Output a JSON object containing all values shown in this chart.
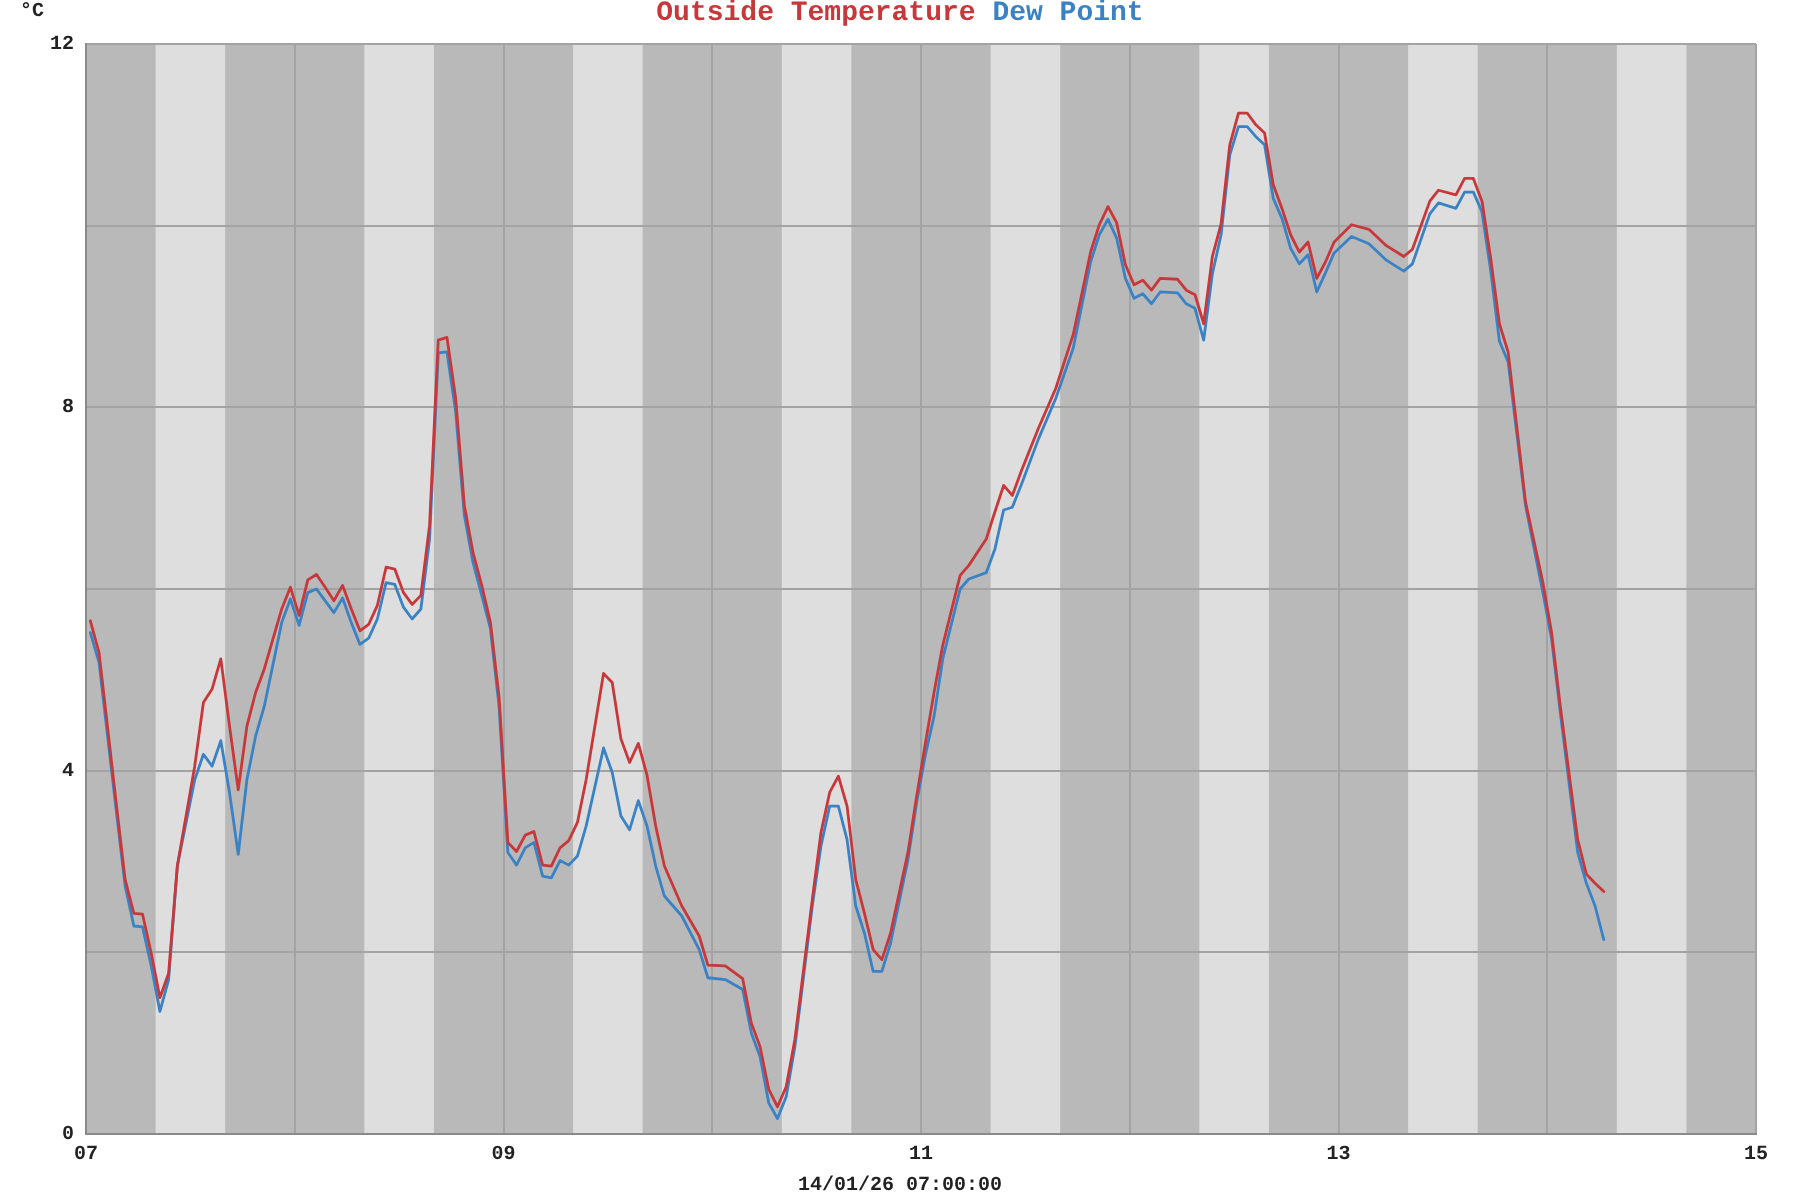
{
  "chart_data": {
    "type": "line",
    "ylabel": "°C",
    "xlabel": "14/01/26 07:00:00",
    "x": [
      "--01-07T00:30",
      "--01-07T01:30",
      "--01-07T03:30",
      "--01-07T04:30",
      "--01-07T05:30",
      "--01-07T06:30",
      "--01-07T07:30",
      "--01-07T08:30",
      "--01-07T09:30",
      "--01-07T10:30",
      "--01-07T12:30",
      "--01-07T13:30",
      "--01-07T14:30",
      "--01-07T15:30",
      "--01-07T16:30",
      "--01-07T17:30",
      "--01-07T18:30",
      "--01-07T19:30",
      "--01-07T20:30",
      "--01-07T22:30",
      "--01-07T23:30",
      "--01-08T00:30",
      "--01-08T01:30",
      "--01-08T02:30",
      "--01-08T03:30",
      "--01-08T04:30",
      "--01-08T05:30",
      "--01-08T06:30",
      "--01-08T07:30",
      "--01-08T08:30",
      "--01-08T09:30",
      "--01-08T10:30",
      "--01-08T11:30",
      "--01-08T12:30",
      "--01-08T13:30",
      "--01-08T14:30",
      "--01-08T15:30",
      "--01-08T16:30",
      "--01-08T17:30",
      "--01-08T18:30",
      "--01-08T19:30",
      "--01-08T20:30",
      "--01-08T21:30",
      "--01-08T22:30",
      "--01-08T23:30",
      "--01-09T00:30",
      "--01-09T01:30",
      "--01-09T02:30",
      "--01-09T03:30",
      "--01-09T04:30",
      "--01-09T05:30",
      "--01-09T06:30",
      "--01-09T07:30",
      "--01-09T08:30",
      "--01-09T09:30",
      "--01-09T11:30",
      "--01-09T12:30",
      "--01-09T13:30",
      "--01-09T14:30",
      "--01-09T15:30",
      "--01-09T16:30",
      "--01-09T17:30",
      "--01-09T18:30",
      "--01-09T20:30",
      "--01-09T22:30",
      "--01-09T23:30",
      "--01-10T01:30",
      "--01-10T03:30",
      "--01-10T04:30",
      "--01-10T05:30",
      "--01-10T06:30",
      "--01-10T07:30",
      "--01-10T08:30",
      "--01-10T09:30",
      "--01-10T11:30",
      "--01-10T12:30",
      "--01-10T13:30",
      "--01-10T14:30",
      "--01-10T15:30",
      "--01-10T16:30",
      "--01-10T17:30",
      "--01-10T18:30",
      "--01-10T19:30",
      "--01-10T20:30",
      "--01-10T22:30",
      "--01-10T23:30",
      "--01-11T00:30",
      "--01-11T01:30",
      "--01-11T02:30",
      "--01-11T04:30",
      "--01-11T05:30",
      "--01-11T07:30",
      "--01-11T08:30",
      "--01-11T09:30",
      "--01-11T10:30",
      "--01-11T11:30",
      "--01-11T13:30",
      "--01-11T15:30",
      "--01-11T17:30",
      "--01-11T19:30",
      "--01-11T20:30",
      "--01-11T21:30",
      "--01-11T22:30",
      "--01-11T23:30",
      "--01-12T00:30",
      "--01-12T01:30",
      "--01-12T02:30",
      "--01-12T03:30",
      "--01-12T05:30",
      "--01-12T06:30",
      "--01-12T07:30",
      "--01-12T08:30",
      "--01-12T09:30",
      "--01-12T10:30",
      "--01-12T11:30",
      "--01-12T12:30",
      "--01-12T13:30",
      "--01-12T14:30",
      "--01-12T15:30",
      "--01-12T16:30",
      "--01-12T17:30",
      "--01-12T18:30",
      "--01-12T19:30",
      "--01-12T20:30",
      "--01-12T21:30",
      "--01-12T22:30",
      "--01-12T23:30",
      "--01-13T01:30",
      "--01-13T03:30",
      "--01-13T05:30",
      "--01-13T07:30",
      "--01-13T08:30",
      "--01-13T10:30",
      "--01-13T11:30",
      "--01-13T13:30",
      "--01-13T14:30",
      "--01-13T15:30",
      "--01-13T16:30",
      "--01-13T17:30",
      "--01-13T18:30",
      "--01-13T19:30",
      "--01-13T21:30",
      "--01-13T23:30",
      "--01-14T00:30",
      "--01-14T01:30",
      "--01-14T03:30",
      "--01-14T04:30",
      "--01-14T05:30",
      "--01-14T06:30"
    ],
    "series": [
      {
        "name": "Outside Temperature",
        "color": "#c8383a",
        "values": [
          5.65,
          5.3,
          3.62,
          2.8,
          2.43,
          2.42,
          1.99,
          1.5,
          1.77,
          2.95,
          4.05,
          4.75,
          4.9,
          5.23,
          4.49,
          3.79,
          4.49,
          4.86,
          5.12,
          5.78,
          6.02,
          5.71,
          6.1,
          6.16,
          6.02,
          5.87,
          6.04,
          5.78,
          5.54,
          5.61,
          5.82,
          6.24,
          6.22,
          5.96,
          5.83,
          5.93,
          6.7,
          8.74,
          8.77,
          8.1,
          6.92,
          6.4,
          6.04,
          5.63,
          4.8,
          3.21,
          3.11,
          3.29,
          3.33,
          2.96,
          2.95,
          3.15,
          3.23,
          3.43,
          3.9,
          5.07,
          4.97,
          4.35,
          4.09,
          4.3,
          3.95,
          3.39,
          2.95,
          2.51,
          2.18,
          1.86,
          1.85,
          1.71,
          1.22,
          0.96,
          0.49,
          0.3,
          0.52,
          1.04,
          2.58,
          3.32,
          3.76,
          3.94,
          3.61,
          2.8,
          2.43,
          2.03,
          1.92,
          2.21,
          3.1,
          3.72,
          4.3,
          4.86,
          5.38,
          6.15,
          6.26,
          6.55,
          6.85,
          7.14,
          7.03,
          7.29,
          7.77,
          8.21,
          8.8,
          9.71,
          10.01,
          10.21,
          10.03,
          9.57,
          9.35,
          9.4,
          9.29,
          9.42,
          9.41,
          9.29,
          9.24,
          8.92,
          9.66,
          10.02,
          10.89,
          11.24,
          11.24,
          11.11,
          11.02,
          10.45,
          10.19,
          9.9,
          9.71,
          9.82,
          9.42,
          9.6,
          9.82,
          10.01,
          9.96,
          9.78,
          9.66,
          9.74,
          10.27,
          10.39,
          10.34,
          10.52,
          10.52,
          10.27,
          9.64,
          8.92,
          8.61,
          6.96,
          6.07,
          5.52,
          4.71,
          3.24,
          2.86,
          2.76,
          2.67
        ]
      },
      {
        "name": "Dew Point",
        "color": "#3b82c4",
        "values": [
          5.52,
          5.19,
          3.54,
          2.73,
          2.29,
          2.28,
          1.85,
          1.35,
          1.7,
          2.95,
          3.9,
          4.18,
          4.05,
          4.33,
          3.76,
          3.08,
          3.9,
          4.38,
          4.71,
          5.63,
          5.89,
          5.6,
          5.96,
          6.0,
          5.87,
          5.74,
          5.9,
          5.63,
          5.39,
          5.46,
          5.67,
          6.07,
          6.05,
          5.8,
          5.67,
          5.78,
          6.55,
          8.6,
          8.61,
          7.95,
          6.81,
          6.29,
          5.93,
          5.56,
          4.7,
          3.1,
          2.96,
          3.15,
          3.21,
          2.84,
          2.82,
          3.01,
          2.96,
          3.06,
          3.39,
          4.25,
          3.98,
          3.5,
          3.35,
          3.67,
          3.39,
          2.95,
          2.62,
          2.4,
          2.03,
          1.72,
          1.7,
          1.59,
          1.11,
          0.85,
          0.34,
          0.17,
          0.41,
          0.96,
          2.51,
          3.17,
          3.61,
          3.61,
          3.24,
          2.51,
          2.21,
          1.79,
          1.79,
          2.1,
          3.02,
          3.65,
          4.17,
          4.6,
          5.23,
          6.0,
          6.11,
          6.18,
          6.44,
          6.87,
          6.9,
          7.14,
          7.65,
          8.1,
          8.65,
          9.6,
          9.9,
          10.07,
          9.86,
          9.42,
          9.2,
          9.25,
          9.14,
          9.27,
          9.26,
          9.14,
          9.09,
          8.74,
          9.47,
          9.9,
          10.78,
          11.09,
          11.09,
          10.98,
          10.89,
          10.3,
          10.08,
          9.75,
          9.58,
          9.68,
          9.27,
          9.48,
          9.7,
          9.88,
          9.8,
          9.62,
          9.5,
          9.58,
          10.13,
          10.25,
          10.19,
          10.37,
          10.37,
          10.15,
          9.5,
          8.73,
          8.5,
          6.92,
          5.96,
          5.45,
          4.64,
          3.1,
          2.76,
          2.51,
          2.14
        ]
      }
    ],
    "xlim": [
      "--01-07",
      "--01-15"
    ],
    "xticks": [
      {
        "value": "--01-07",
        "label": "07"
      },
      {
        "value": "--01-08",
        "label": null
      },
      {
        "value": "--01-09",
        "label": "09"
      },
      {
        "value": "--01-10",
        "label": null
      },
      {
        "value": "--01-11",
        "label": "11"
      },
      {
        "value": "--01-12",
        "label": null
      },
      {
        "value": "--01-13",
        "label": "13"
      },
      {
        "value": "--01-14",
        "label": null
      },
      {
        "value": "--01-15",
        "label": "15"
      }
    ],
    "ylim": [
      0,
      12
    ],
    "yticks": [
      0,
      {
        "value": 2,
        "label": null
      },
      4,
      {
        "value": 6,
        "label": null
      },
      8,
      {
        "value": 10,
        "label": null
      },
      12
    ],
    "bands": [
      {
        "axis": "x",
        "from": "--01-07T08:00",
        "to": "--01-07T16:00",
        "color": "#dedede"
      },
      {
        "axis": "x",
        "from": "--01-08T08:00",
        "to": "--01-08T16:00",
        "color": "#dedede"
      },
      {
        "axis": "x",
        "from": "--01-09T08:00",
        "to": "--01-09T16:00",
        "color": "#dedede"
      },
      {
        "axis": "x",
        "from": "--01-10T08:00",
        "to": "--01-10T16:00",
        "color": "#dedede"
      },
      {
        "axis": "x",
        "from": "--01-11T08:00",
        "to": "--01-11T16:00",
        "color": "#dedede"
      },
      {
        "axis": "x",
        "from": "--01-12T08:00",
        "to": "--01-12T16:00",
        "color": "#dedede"
      },
      {
        "axis": "x",
        "from": "--01-13T08:00",
        "to": "--01-13T16:00",
        "color": "#dedede"
      },
      {
        "axis": "x",
        "from": "--01-14T08:00",
        "to": "--01-14T16:00",
        "color": "#dedede"
      }
    ],
    "grid": true,
    "legend": "top"
  }
}
